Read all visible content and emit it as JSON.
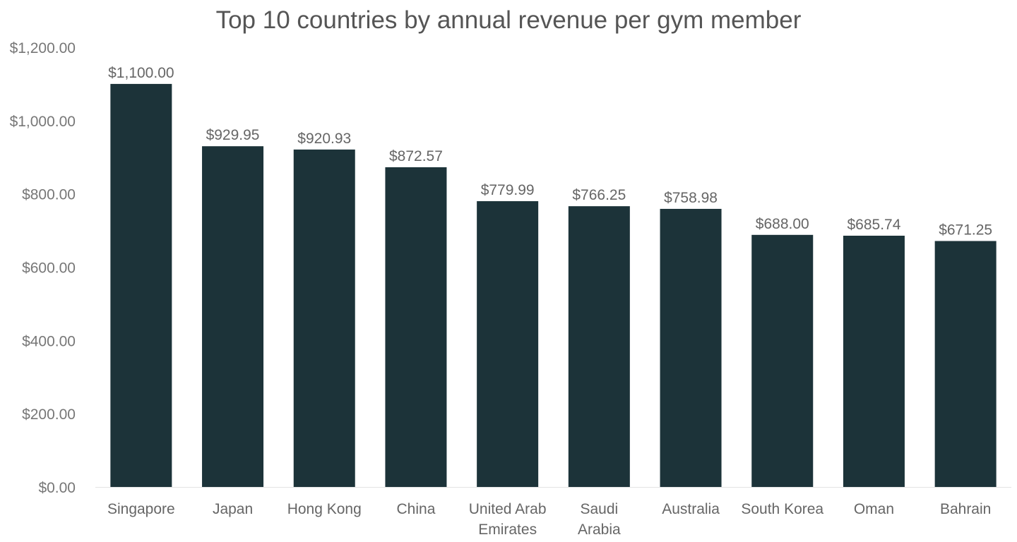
{
  "chart_data": {
    "type": "bar",
    "title": "Top 10 countries by annual revenue per gym member",
    "xlabel": "",
    "ylabel": "",
    "categories": [
      "Singapore",
      "Japan",
      "Hong Kong",
      "China",
      "United Arab Emirates",
      "Saudi Arabia",
      "Australia",
      "South Korea",
      "Oman",
      "Bahrain"
    ],
    "category_lines": [
      [
        "Singapore"
      ],
      [
        "Japan"
      ],
      [
        "Hong Kong"
      ],
      [
        "China"
      ],
      [
        "United Arab",
        "Emirates"
      ],
      [
        "Saudi",
        "Arabia"
      ],
      [
        "Australia"
      ],
      [
        "South Korea"
      ],
      [
        "Oman"
      ],
      [
        "Bahrain"
      ]
    ],
    "values": [
      1100.0,
      929.95,
      920.93,
      872.57,
      779.99,
      766.25,
      758.98,
      688.0,
      685.74,
      671.25
    ],
    "data_labels": [
      "$1,100.00",
      "$929.95",
      "$920.93",
      "$872.57",
      "$779.99",
      "$766.25",
      "$758.98",
      "$688.00",
      "$685.74",
      "$671.25"
    ],
    "ylim": [
      0,
      1200
    ],
    "yticks": [
      0,
      200,
      400,
      600,
      800,
      1000,
      1200
    ],
    "ytick_labels": [
      "$0.00",
      "$200.00",
      "$400.00",
      "$600.00",
      "$800.00",
      "$1,000.00",
      "$1,200.00"
    ],
    "grid": false,
    "legend": "none",
    "bar_color": "#1c3339"
  }
}
